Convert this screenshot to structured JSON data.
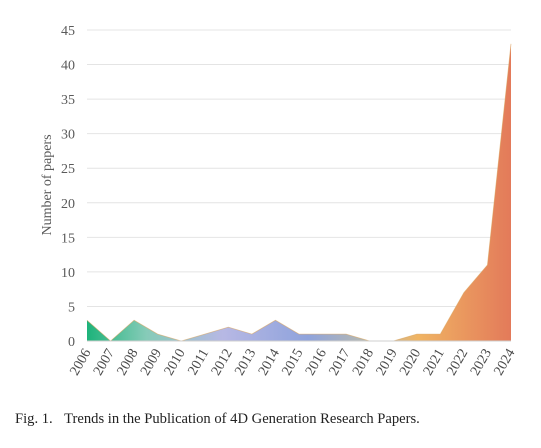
{
  "chart_data": {
    "type": "area",
    "ylabel": "Number of papers",
    "xlabel": "",
    "title": "",
    "categories": [
      "2006",
      "2007",
      "2008",
      "2009",
      "2010",
      "2011",
      "2012",
      "2013",
      "2014",
      "2015",
      "2016",
      "2017",
      "2018",
      "2019",
      "2020",
      "2021",
      "2022",
      "2023",
      "2024"
    ],
    "values": [
      3,
      0,
      3,
      1,
      0,
      1,
      2,
      1,
      3,
      1,
      1,
      1,
      0,
      0,
      1,
      1,
      7,
      11,
      43
    ],
    "ylim": [
      0,
      45
    ],
    "yticks": [
      0,
      5,
      10,
      15,
      20,
      25,
      30,
      35,
      40,
      45
    ],
    "grid": true,
    "colors": [
      "#1db37a",
      "#86cbb8",
      "#b7b8e4",
      "#8fa3dc",
      "#b6b9b0",
      "#f0b463",
      "#e37a5a"
    ]
  },
  "caption": {
    "label": "Fig. 1.",
    "text": "Trends in the Publication of 4D Generation Research Papers."
  }
}
